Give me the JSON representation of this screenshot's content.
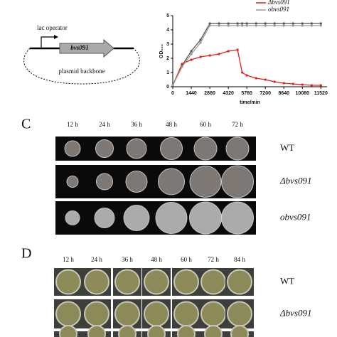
{
  "plasmid": {
    "promoter": "lac operator",
    "gene": "bvs091",
    "backbone": "plasmid backbone"
  },
  "chart_data": {
    "type": "line",
    "x_label": "time/min",
    "y_label": "OD₆₀₀",
    "x": [
      0,
      720,
      1440,
      2160,
      2880,
      3600,
      4320,
      5040,
      5400,
      5760,
      6480,
      7200,
      7920,
      8640,
      9360,
      10080,
      10800,
      11520
    ],
    "series": [
      {
        "color": "#555555",
        "values": [
          0.1,
          1.5,
          2.5,
          3.3,
          4.45,
          4.45,
          4.45,
          4.45,
          4.45,
          4.45,
          4.45,
          4.45,
          4.45,
          4.45,
          4.45,
          4.45,
          4.45,
          4.45
        ]
      },
      {
        "name": "Δbvs091",
        "color": "#e02020",
        "values": [
          0.1,
          1.6,
          1.9,
          2.1,
          2.2,
          2.3,
          2.5,
          2.6,
          1.0,
          0.8,
          0.6,
          0.5,
          0.35,
          0.25,
          0.2,
          0.15,
          0.1,
          0.1
        ]
      },
      {
        "name": "obvs091",
        "color": "#999999",
        "values": [
          0.1,
          1.4,
          2.3,
          3.1,
          4.3,
          4.3,
          4.3,
          4.3,
          4.3,
          4.3,
          4.3,
          4.3,
          4.3,
          4.3,
          4.3,
          4.3,
          4.3,
          4.3
        ]
      }
    ],
    "xlim": [
      0,
      12000
    ],
    "xticks": [
      0,
      1440,
      2880,
      4320,
      5760,
      7200,
      8640,
      10080,
      11520
    ],
    "ylim": [
      0,
      5
    ],
    "yticks": [
      0,
      1,
      2,
      3,
      4,
      5
    ]
  },
  "panel_c": {
    "label": "C",
    "times": [
      "12 h",
      "24 h",
      "36 h",
      "48 h",
      "60 h",
      "72 h"
    ],
    "rows": [
      "WT",
      "Δbvs091",
      "obvs091"
    ]
  },
  "panel_d": {
    "label": "D",
    "times": [
      "12 h",
      "24 h",
      "36 h",
      "48 h",
      "60 h",
      "72 h",
      "84 h"
    ],
    "rows": [
      "WT",
      "Δbvs091"
    ]
  }
}
